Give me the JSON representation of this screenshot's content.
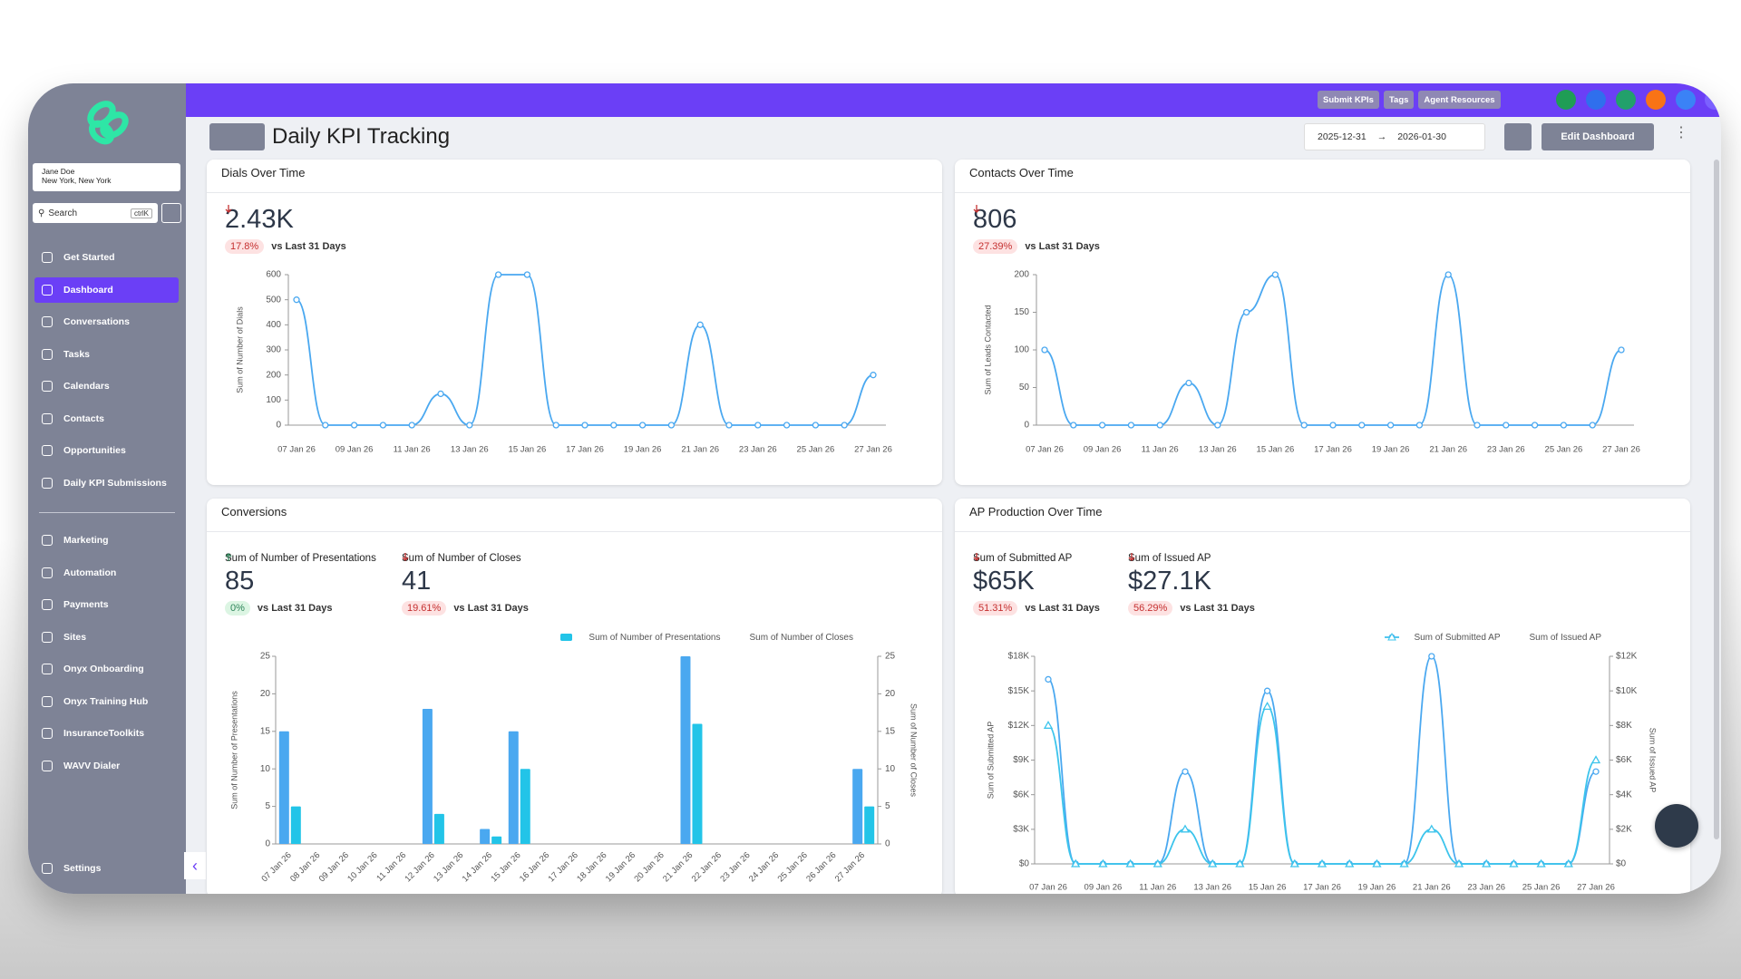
{
  "header": {
    "buttons": [
      "Submit KPIs",
      "Tags",
      "Agent Resources"
    ],
    "title": "Daily KPI Tracking",
    "date_start": "2025-12-31",
    "date_end": "2026-01-30",
    "edit": "Edit Dashboard"
  },
  "sidebar": {
    "user_name": "Jane Doe",
    "user_location": "New York, New York",
    "search": "Search",
    "shortcut": "ctrlK",
    "active": 1,
    "nav": [
      "Get Started",
      "Dashboard",
      "Conversations",
      "Tasks",
      "Calendars",
      "Contacts",
      "Opportunities",
      "Daily KPI Submissions"
    ],
    "nav2": [
      "Marketing",
      "Automation",
      "Payments",
      "Sites",
      "Onyx Onboarding",
      "Onyx Training Hub",
      "InsuranceToolkits",
      "WAVV Dialer"
    ],
    "settings": "Settings"
  },
  "chart_data": [
    {
      "type": "line",
      "title": "Dials Over Time",
      "kpis": [
        {
          "value": "2.43K",
          "change": "17.8%",
          "direction": "down",
          "comparison": "vs Last 31 Days"
        }
      ],
      "categories": [
        "07 Jan 26",
        null,
        "09 Jan 26",
        null,
        "11 Jan 26",
        null,
        "13 Jan 26",
        null,
        "15 Jan 26",
        null,
        "17 Jan 26",
        null,
        "19 Jan 26",
        null,
        "21 Jan 26",
        null,
        "23 Jan 26",
        null,
        "25 Jan 26",
        null,
        "27 Jan 26"
      ],
      "values": [
        500,
        0,
        0,
        0,
        0,
        125,
        0,
        600,
        600,
        0,
        0,
        0,
        0,
        0,
        400,
        0,
        0,
        0,
        0,
        0,
        200
      ],
      "color": "#4aa8f0",
      "marker": "circle",
      "y_label": "Sum of Number of Dials",
      "ylim": [
        0,
        600
      ],
      "yticks": [
        0,
        100,
        200,
        300,
        400,
        500,
        600
      ],
      "grid": false
    },
    {
      "type": "line",
      "title": "Contacts Over Time",
      "kpis": [
        {
          "value": "806",
          "change": "27.39%",
          "direction": "down",
          "comparison": "vs Last 31 Days"
        }
      ],
      "categories": [
        "07 Jan 26",
        null,
        "09 Jan 26",
        null,
        "11 Jan 26",
        null,
        "13 Jan 26",
        null,
        "15 Jan 26",
        null,
        "17 Jan 26",
        null,
        "19 Jan 26",
        null,
        "21 Jan 26",
        null,
        "23 Jan 26",
        null,
        "25 Jan 26",
        null,
        "27 Jan 26"
      ],
      "values": [
        100,
        0,
        0,
        0,
        0,
        56,
        0,
        150,
        200,
        0,
        0,
        0,
        0,
        0,
        200,
        0,
        0,
        0,
        0,
        0,
        100
      ],
      "color": "#4aa8f0",
      "marker": "circle",
      "y_label": "Sum of Leads Contacted",
      "ylim": [
        0,
        200
      ],
      "yticks": [
        0,
        50,
        100,
        150,
        200
      ],
      "grid": false
    },
    {
      "type": "bar",
      "title": "Conversions",
      "kpis": [
        {
          "label": "Sum of Number of Presentations",
          "value": "85",
          "change": "0%",
          "direction": "up",
          "comparison": "vs Last 31 Days"
        },
        {
          "label": "Sum of Number of Closes",
          "value": "41",
          "change": "19.61%",
          "direction": "down",
          "comparison": "vs Last 31 Days"
        }
      ],
      "categories": [
        "07 Jan 26",
        "08 Jan 26",
        "09 Jan 26",
        "10 Jan 26",
        "11 Jan 26",
        "12 Jan 26",
        "13 Jan 26",
        "14 Jan 26",
        "15 Jan 26",
        "16 Jan 26",
        "17 Jan 26",
        "18 Jan 26",
        "19 Jan 26",
        "20 Jan 26",
        "21 Jan 26",
        "22 Jan 26",
        "23 Jan 26",
        "24 Jan 26",
        "25 Jan 26",
        "26 Jan 26",
        "27 Jan 26"
      ],
      "series": [
        {
          "name": "Sum of Number of Presentations",
          "color": "#4aa8f0",
          "values": [
            15,
            0,
            0,
            0,
            0,
            18,
            0,
            2,
            15,
            0,
            0,
            0,
            0,
            0,
            25,
            0,
            0,
            0,
            0,
            0,
            10
          ]
        },
        {
          "name": "Sum of Number of Closes",
          "color": "#22c4e8",
          "axis": "y2",
          "values": [
            5,
            0,
            0,
            0,
            0,
            4,
            0,
            1,
            10,
            0,
            0,
            0,
            0,
            0,
            16,
            0,
            0,
            0,
            0,
            0,
            5
          ]
        }
      ],
      "y_label": "Sum of Number of Presentations",
      "y2_label": "Sum of Number of Closes",
      "ylim": [
        0,
        25
      ],
      "yticks": [
        0,
        5,
        10,
        15,
        20,
        25
      ],
      "y2lim": [
        0,
        25
      ],
      "y2ticks": [
        0,
        5,
        10,
        15,
        20,
        25
      ],
      "legend": "top-right",
      "grid": false
    },
    {
      "type": "line",
      "title": "AP Production Over Time",
      "kpis": [
        {
          "label": "Sum of Submitted AP",
          "value": "$65K",
          "change": "51.31%",
          "direction": "down",
          "comparison": "vs Last 31 Days"
        },
        {
          "label": "Sum of Issued AP",
          "value": "$27.1K",
          "change": "56.29%",
          "direction": "down",
          "comparison": "vs Last 31 Days"
        }
      ],
      "categories": [
        "07 Jan 26",
        null,
        "09 Jan 26",
        null,
        "11 Jan 26",
        null,
        "13 Jan 26",
        null,
        "15 Jan 26",
        null,
        "17 Jan 26",
        null,
        "19 Jan 26",
        null,
        "21 Jan 26",
        null,
        "23 Jan 26",
        null,
        "25 Jan 26",
        null,
        "27 Jan 26"
      ],
      "series": [
        {
          "name": "Sum of Submitted AP",
          "color": "#4aa8f0",
          "marker": "circle",
          "values": [
            16000,
            0,
            0,
            0,
            0,
            8000,
            0,
            0,
            15000,
            0,
            0,
            0,
            0,
            0,
            18000,
            0,
            0,
            0,
            0,
            0,
            8000
          ]
        },
        {
          "name": "Sum of Issued AP",
          "color": "#3cc4ec",
          "marker": "triangle",
          "axis": "y2",
          "values": [
            8000,
            0,
            0,
            0,
            0,
            2000,
            0,
            0,
            9100,
            0,
            0,
            0,
            0,
            0,
            2000,
            0,
            0,
            0,
            0,
            0,
            6000
          ]
        }
      ],
      "y_label": "Sum of Submitted AP",
      "y2_label": "Sum of Issued AP",
      "ylim": [
        0,
        18000
      ],
      "yticks": [
        {
          "value": 0,
          "label": "$0"
        },
        {
          "value": 3000,
          "label": "$3K"
        },
        {
          "value": 6000,
          "label": "$6K"
        },
        {
          "value": 9000,
          "label": "$9K"
        },
        {
          "value": 12000,
          "label": "$12K"
        },
        {
          "value": 15000,
          "label": "$15K"
        },
        {
          "value": 18000,
          "label": "$18K"
        }
      ],
      "y2lim": [
        0,
        12000
      ],
      "y2ticks": [
        {
          "value": 0,
          "label": "$0"
        },
        {
          "value": 2000,
          "label": "$2K"
        },
        {
          "value": 4000,
          "label": "$4K"
        },
        {
          "value": 6000,
          "label": "$6K"
        },
        {
          "value": 8000,
          "label": "$8K"
        },
        {
          "value": 10000,
          "label": "$10K"
        },
        {
          "value": 12000,
          "label": "$12K"
        }
      ],
      "legend": "top-right",
      "grid": false
    }
  ]
}
